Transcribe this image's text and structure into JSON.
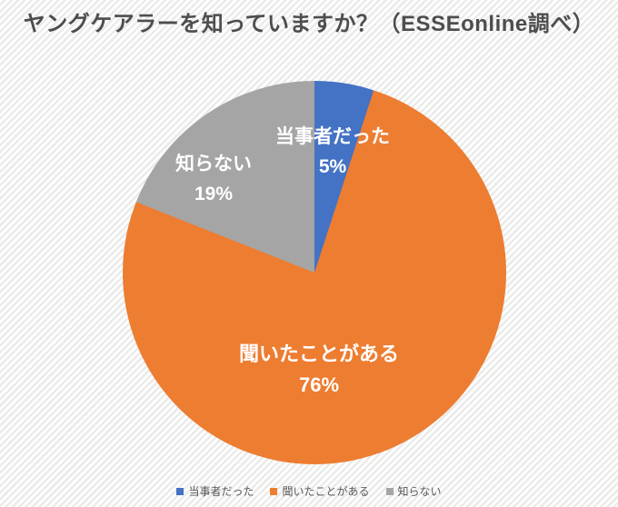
{
  "title": "ヤングケアラーを知っていますか？（ESSEonline調べ）",
  "chart_data": {
    "type": "pie",
    "title": "ヤングケアラーを知っていますか？（ESSEonline調べ）",
    "start_angle_deg": 0,
    "direction": "clockwise",
    "legend_position": "bottom",
    "data_label_style": "category name and percentage, white bold, inside slices",
    "slices": [
      {
        "label": "当事者だった",
        "value": 5,
        "pct_label": "5%",
        "color": "#4472C4"
      },
      {
        "label": "聞いたことがある",
        "value": 76,
        "pct_label": "76%",
        "color": "#ED7D31"
      },
      {
        "label": "知らない",
        "value": 19,
        "pct_label": "19%",
        "color": "#A5A5A5"
      }
    ],
    "colors": {
      "title_text": "#4d4d4d",
      "data_label_text": "#ffffff",
      "legend_text": "#595959",
      "background_stripe": "#ebebea"
    }
  }
}
